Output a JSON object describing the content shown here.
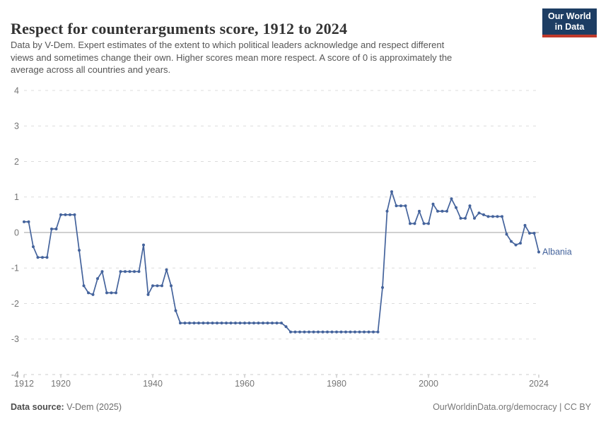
{
  "header": {
    "title": "Respect for counterarguments score, 1912 to 2024",
    "subtitle_lines": [
      "Data by V-Dem. Expert estimates of the extent to which political leaders acknowledge and respect different",
      "views and sometimes change their own. Higher scores mean more respect. A score of 0 is approximately the",
      "average across all countries and years."
    ],
    "logo": {
      "line1": "Our World",
      "line2": "in Data",
      "bg_color": "#1d3d63",
      "bar_color": "#c0392b"
    }
  },
  "chart_data": {
    "type": "line",
    "title": "Respect for counterarguments score, 1912 to 2024",
    "xlabel": "",
    "ylabel": "",
    "ylim": [
      -4,
      4
    ],
    "yticks": [
      4,
      3,
      2,
      1,
      0,
      -1,
      -2,
      -3,
      -4
    ],
    "xticks": [
      1912,
      1920,
      1940,
      1960,
      1980,
      2000,
      2024
    ],
    "grid": "horizontal-dashed",
    "zero_line": true,
    "legend_position": "end-of-line-label",
    "x": [
      1912,
      1913,
      1914,
      1915,
      1916,
      1917,
      1918,
      1919,
      1920,
      1921,
      1922,
      1923,
      1924,
      1925,
      1926,
      1927,
      1928,
      1929,
      1930,
      1931,
      1932,
      1933,
      1934,
      1935,
      1936,
      1937,
      1938,
      1939,
      1940,
      1941,
      1942,
      1943,
      1944,
      1945,
      1946,
      1947,
      1948,
      1949,
      1950,
      1951,
      1952,
      1953,
      1954,
      1955,
      1956,
      1957,
      1958,
      1959,
      1960,
      1961,
      1962,
      1963,
      1964,
      1965,
      1966,
      1967,
      1968,
      1969,
      1970,
      1971,
      1972,
      1973,
      1974,
      1975,
      1976,
      1977,
      1978,
      1979,
      1980,
      1981,
      1982,
      1983,
      1984,
      1985,
      1986,
      1987,
      1988,
      1989,
      1990,
      1991,
      1992,
      1993,
      1994,
      1995,
      1996,
      1997,
      1998,
      1999,
      2000,
      2001,
      2002,
      2003,
      2004,
      2005,
      2006,
      2007,
      2008,
      2009,
      2010,
      2011,
      2012,
      2013,
      2014,
      2015,
      2016,
      2017,
      2018,
      2019,
      2020,
      2021,
      2022,
      2023,
      2024
    ],
    "series": [
      {
        "name": "Albania",
        "color": "#44639c",
        "values": [
          0.3,
          0.3,
          -0.4,
          -0.7,
          -0.7,
          -0.7,
          0.1,
          0.1,
          0.5,
          0.5,
          0.5,
          0.5,
          -0.5,
          -1.5,
          -1.7,
          -1.75,
          -1.3,
          -1.1,
          -1.7,
          -1.7,
          -1.7,
          -1.1,
          -1.1,
          -1.1,
          -1.1,
          -1.1,
          -0.35,
          -1.75,
          -1.5,
          -1.5,
          -1.5,
          -1.05,
          -1.5,
          -2.2,
          -2.55,
          -2.55,
          -2.55,
          -2.55,
          -2.55,
          -2.55,
          -2.55,
          -2.55,
          -2.55,
          -2.55,
          -2.55,
          -2.55,
          -2.55,
          -2.55,
          -2.55,
          -2.55,
          -2.55,
          -2.55,
          -2.55,
          -2.55,
          -2.55,
          -2.55,
          -2.55,
          -2.65,
          -2.8,
          -2.8,
          -2.8,
          -2.8,
          -2.8,
          -2.8,
          -2.8,
          -2.8,
          -2.8,
          -2.8,
          -2.8,
          -2.8,
          -2.8,
          -2.8,
          -2.8,
          -2.8,
          -2.8,
          -2.8,
          -2.8,
          -2.8,
          -1.55,
          0.6,
          1.15,
          0.75,
          0.75,
          0.75,
          0.25,
          0.25,
          0.6,
          0.25,
          0.25,
          0.8,
          0.6,
          0.6,
          0.6,
          0.95,
          0.7,
          0.4,
          0.4,
          0.75,
          0.4,
          0.55,
          0.5,
          0.45,
          0.45,
          0.45,
          0.45,
          -0.05,
          -0.25,
          -0.35,
          -0.3,
          0.2,
          -0.02,
          -0.02,
          -0.55
        ]
      }
    ],
    "colors": {
      "grid": "#dcdcdc",
      "zero_line": "#a0a0a0",
      "axis_line": "#cccccc",
      "tick_mark": "#b5b5b5",
      "tick_label": "#757575"
    }
  },
  "footer": {
    "source_label": "Data source:",
    "source_value": " V-Dem (2025)",
    "credit": "OurWorldinData.org/democracy | CC BY"
  }
}
